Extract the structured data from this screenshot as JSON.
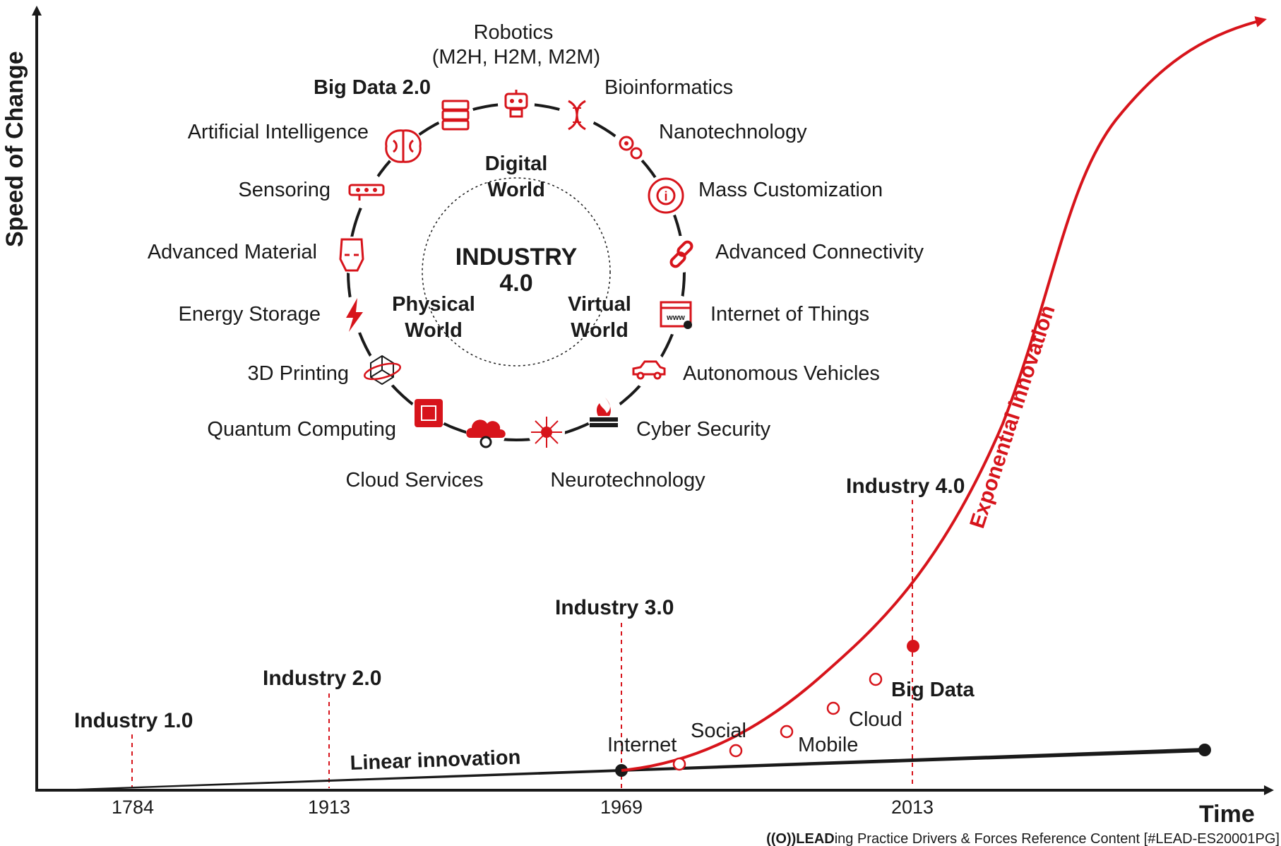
{
  "axes": {
    "y_label": "Speed of Change",
    "x_label": "Time",
    "ticks": [
      "1784",
      "1913",
      "1969",
      "2013"
    ]
  },
  "industries": {
    "i1": "Industry 1.0",
    "i2": "Industry 2.0",
    "i3": "Industry 3.0",
    "i4": "Industry 4.0"
  },
  "curves": {
    "linear": "Linear innovation",
    "exponential": "Exponential innovation"
  },
  "milestones": {
    "internet": "Internet",
    "social": "Social",
    "mobile": "Mobile",
    "cloud": "Cloud",
    "big_data": "Big Data"
  },
  "center": {
    "title_line1": "INDUSTRY",
    "title_line2": "4.0",
    "digital_1": "Digital",
    "digital_2": "World",
    "physical_1": "Physical",
    "physical_2": "World",
    "virtual_1": "Virtual",
    "virtual_2": "World"
  },
  "technologies": {
    "robotics_1": "Robotics",
    "robotics_2": "(M2H, H2M, M2M)",
    "big_data_2": "Big Data 2.0",
    "bioinformatics": "Bioinformatics",
    "ai": "Artificial Intelligence",
    "nanotech": "Nanotechnology",
    "sensoring": "Sensoring",
    "mass_custom": "Mass Customization",
    "adv_material": "Advanced Material",
    "adv_connect": "Advanced Connectivity",
    "energy": "Energy Storage",
    "iot": "Internet of Things",
    "printing": "3D Printing",
    "autonomous": "Autonomous Vehicles",
    "quantum": "Quantum Computing",
    "cyber": "Cyber Security",
    "cloud_services": "Cloud Services",
    "neurotech": "Neurotechnology"
  },
  "footer": {
    "logo_text": "((O))LEAD",
    "text": "ing Practice Drivers & Forces Reference Content [#LEAD-ES20001PG]"
  },
  "colors": {
    "accent": "#d7141b",
    "ink": "#1a1a1a"
  }
}
